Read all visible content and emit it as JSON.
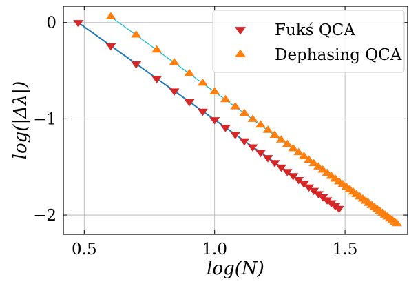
{
  "chart_data": {
    "type": "scatter",
    "title": "",
    "xlabel": "log(N)",
    "ylabel": "log(|Δλ|)",
    "xlim": [
      0.42,
      1.74
    ],
    "ylim": [
      -2.2,
      0.17
    ],
    "grid": true,
    "legend": "top-right",
    "x_ticks": [
      0.5,
      1.0,
      1.5
    ],
    "x_tick_labels": [
      "0.5",
      "1.0",
      "1.5"
    ],
    "y_ticks": [
      0,
      -1,
      -2
    ],
    "y_tick_labels": [
      "0",
      "−1",
      "−2"
    ],
    "series": [
      {
        "name": "Fukś QCA",
        "marker": "triangle-down",
        "color": "#d62728",
        "n_values": [
          3,
          4,
          5,
          6,
          7,
          8,
          9,
          10,
          11,
          12,
          13,
          14,
          15,
          16,
          17,
          18,
          19,
          20,
          21,
          22,
          23,
          24,
          25,
          26,
          27,
          28,
          29,
          30
        ],
        "fit": {
          "color": "#1f77b4",
          "x": [
            0.477,
            1.477
          ],
          "y": [
            0.0,
            -1.93
          ]
        }
      },
      {
        "name": "Dephasing QCA",
        "marker": "triangle-up",
        "color": "#ff7f0e",
        "n_values": [
          4,
          5,
          6,
          7,
          8,
          9,
          10,
          11,
          12,
          13,
          14,
          15,
          16,
          17,
          18,
          19,
          20,
          21,
          22,
          23,
          24,
          25,
          26,
          27,
          28,
          29,
          30,
          31,
          32,
          33,
          34,
          35,
          36,
          37,
          38,
          39,
          40,
          41,
          42,
          43,
          44,
          45,
          46,
          47,
          48,
          49,
          50
        ],
        "fit": {
          "color": "#17becf",
          "x": [
            0.602,
            1.699
          ],
          "y": [
            0.06,
            -2.09
          ]
        }
      }
    ]
  }
}
